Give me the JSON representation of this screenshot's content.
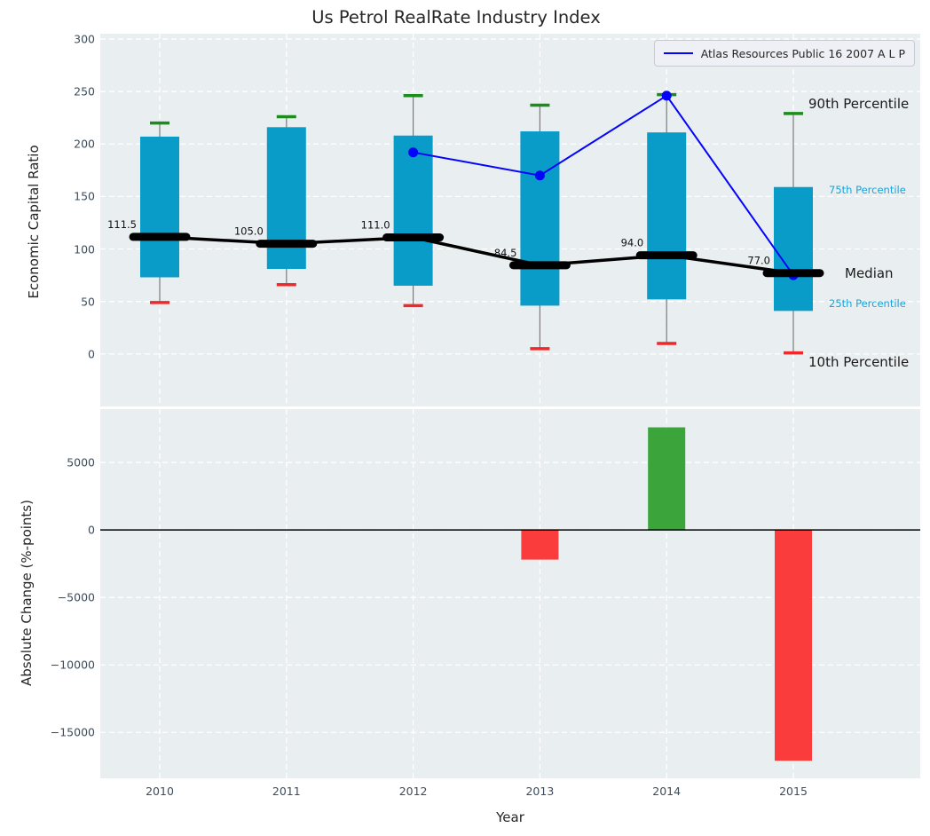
{
  "title": "Us Petrol RealRate Industry Index",
  "legend": {
    "label": "Atlas Resources Public 16 2007 A L P"
  },
  "top_axis": {
    "ylabel": "Economic Capital Ratio",
    "yticks": [
      0,
      50,
      100,
      150,
      200,
      250,
      300
    ],
    "ylim": [
      -50,
      305
    ]
  },
  "bottom_axis": {
    "ylabel": "Absolute Change (%-points)",
    "xlabel": "Year",
    "yticks": [
      5000,
      0,
      -5000,
      -10000,
      -15000
    ],
    "ylim": [
      -18400,
      8950
    ]
  },
  "annotations": [
    {
      "text": "90th Percentile",
      "series": "p90",
      "variant": "large"
    },
    {
      "text": "75th Percentile",
      "series": "p75",
      "variant": "small"
    },
    {
      "text": "Median",
      "series": "median",
      "variant": "large"
    },
    {
      "text": "25th Percentile",
      "series": "p25",
      "variant": "small"
    },
    {
      "text": "10th Percentile",
      "series": "p10",
      "variant": "large"
    }
  ],
  "chart_data": [
    {
      "type": "box-percentile-with-line",
      "title": "Us Petrol RealRate Industry Index",
      "ylabel": "Economic Capital Ratio",
      "categories": [
        "2010",
        "2011",
        "2012",
        "2013",
        "2014",
        "2015"
      ],
      "grid": true,
      "legend_position": "upper right",
      "series": [
        {
          "name": "p90",
          "label": "90th Percentile",
          "values": [
            220,
            226,
            246,
            237,
            247,
            229
          ]
        },
        {
          "name": "p75",
          "label": "75th Percentile",
          "values": [
            207,
            216,
            208,
            212,
            211,
            159
          ]
        },
        {
          "name": "median",
          "label": "Median",
          "values": [
            111.5,
            105.0,
            111.0,
            84.5,
            94.0,
            77.0
          ]
        },
        {
          "name": "p25",
          "label": "25th Percentile",
          "values": [
            73,
            81,
            65,
            46,
            52,
            41
          ]
        },
        {
          "name": "p10",
          "label": "10th Percentile",
          "values": [
            49,
            66,
            46,
            5,
            10,
            1
          ]
        },
        {
          "name": "atlas",
          "label": "Atlas Resources Public 16 2007 A L P",
          "values": [
            null,
            null,
            192,
            170,
            246,
            75
          ]
        }
      ],
      "median_labels": [
        "111.5",
        "105.0",
        "111.0",
        "84.5",
        "94.0",
        "77.0"
      ]
    },
    {
      "type": "bar",
      "ylabel": "Absolute Change (%-points)",
      "xlabel": "Year",
      "categories": [
        "2010",
        "2011",
        "2012",
        "2013",
        "2014",
        "2015"
      ],
      "values": [
        null,
        null,
        null,
        -2200,
        7600,
        -17100
      ],
      "grid": true,
      "ylim": [
        -18400,
        8950
      ]
    }
  ],
  "colors": {
    "panel_bg": "#e9eef1",
    "grid": "#ffffff",
    "box_fill": "#0a9cc9",
    "whisker": "#7a7a7a",
    "cap_90th": "#1c8c1c",
    "cap_10th": "#ef2929",
    "median_line": "#000000",
    "atlas_line": "#0404fa",
    "bar_positive": "#3ba43b",
    "bar_negative": "#fa3c3c",
    "annotation_small": "#1aa3d7",
    "tick_text": "#3d4c5c"
  }
}
